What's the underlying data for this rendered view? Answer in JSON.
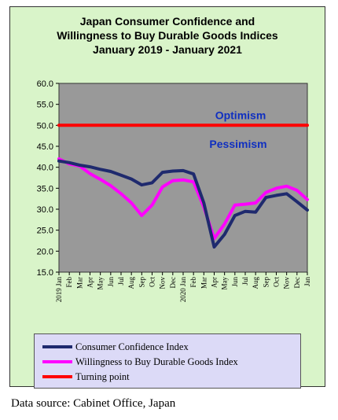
{
  "chart_data": {
    "type": "line",
    "title_lines": [
      "Japan Consumer Confidence and",
      "Willingness to Buy Durable Goods Indices",
      "January 2019 - January 2021"
    ],
    "ylim": [
      15,
      60
    ],
    "yticks": [
      "60.0",
      "55.0",
      "50.0",
      "45.0",
      "40.0",
      "35.0",
      "30.0",
      "25.0",
      "20.0",
      "15.0"
    ],
    "ytick_values": [
      60,
      55,
      50,
      45,
      40,
      35,
      30,
      25,
      20,
      15
    ],
    "x_labels": [
      "2019 Jan",
      "Feb",
      "Mar",
      "Apr",
      "May",
      "Jun",
      "Jul",
      "Aug",
      "Sep",
      "Oct",
      "Nov",
      "Dec",
      "2020 Jan",
      "Feb",
      "Mar",
      "Apr",
      "May",
      "Jun",
      "Jul",
      "Aug",
      "Sep",
      "Oct",
      "Nov",
      "Dec",
      "Jan"
    ],
    "series": [
      {
        "name": "Consumer Confidence Index",
        "color": "#1f2a6e",
        "values": [
          41.5,
          41.1,
          40.5,
          40.1,
          39.5,
          39.0,
          38.1,
          37.2,
          35.8,
          36.3,
          38.8,
          39.1,
          39.2,
          38.4,
          31.5,
          21.0,
          24.0,
          28.5,
          29.5,
          29.3,
          32.8,
          33.3,
          33.7,
          31.8,
          29.8
        ]
      },
      {
        "name": "Willingness to Buy Durable Goods Index",
        "color": "#ff00ff",
        "values": [
          42.0,
          40.8,
          40.3,
          38.5,
          37.1,
          35.6,
          33.7,
          31.5,
          28.5,
          31.0,
          35.3,
          36.8,
          37.0,
          36.5,
          30.5,
          23.0,
          26.5,
          31.0,
          31.2,
          31.5,
          34.0,
          35.0,
          35.5,
          34.5,
          32.3
        ]
      },
      {
        "name": "Turning point",
        "color": "#ff0000",
        "values": [
          50,
          50,
          50,
          50,
          50,
          50,
          50,
          50,
          50,
          50,
          50,
          50,
          50,
          50,
          50,
          50,
          50,
          50,
          50,
          50,
          50,
          50,
          50,
          50,
          50
        ]
      }
    ],
    "annotations": {
      "optimism": "Optimism",
      "pessimism": "Pessimism"
    },
    "plot_background": "#999999",
    "grid": false
  },
  "source_note": "Data source: Cabinet Office, Japan"
}
